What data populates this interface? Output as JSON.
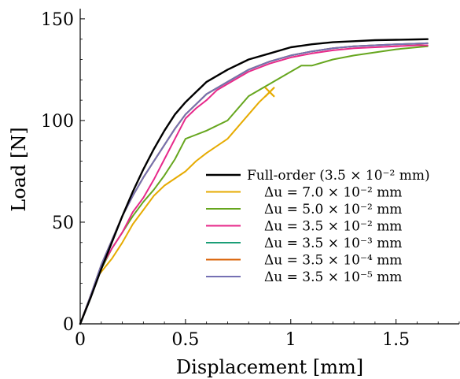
{
  "chart_data": {
    "type": "line",
    "xlabel": "Displacement [mm]",
    "ylabel": "Load [N]",
    "xlim": [
      0,
      1.8
    ],
    "ylim": [
      0,
      155
    ],
    "xticks": [
      0,
      0.5,
      1,
      1.5
    ],
    "xtick_labels": [
      "0",
      "0.5",
      "1",
      "1.5"
    ],
    "yticks": [
      0,
      50,
      100,
      150
    ],
    "ytick_labels": [
      "0",
      "50",
      "100",
      "150"
    ],
    "grid": false,
    "legend_position": "lower-right",
    "series": [
      {
        "name": "Full-order (3.5 × 10⁻² mm)",
        "color": "#000000",
        "x": [
          0,
          0.05,
          0.1,
          0.15,
          0.2,
          0.25,
          0.3,
          0.35,
          0.4,
          0.45,
          0.5,
          0.55,
          0.6,
          0.7,
          0.8,
          0.9,
          1.0,
          1.1,
          1.2,
          1.3,
          1.4,
          1.5,
          1.6,
          1.65
        ],
        "y": [
          0,
          13,
          27,
          40,
          53,
          65,
          76,
          86,
          95,
          103,
          109,
          114,
          119,
          125,
          130,
          133,
          136,
          137.5,
          138.5,
          139,
          139.5,
          139.7,
          139.9,
          140
        ]
      },
      {
        "name": "Δu = 7.0 × 10⁻² mm",
        "color": "#e6ab02",
        "x": [
          0,
          0.05,
          0.08,
          0.15,
          0.2,
          0.25,
          0.3,
          0.35,
          0.4,
          0.5,
          0.55,
          0.6,
          0.7,
          0.75,
          0.85,
          0.9
        ],
        "y": [
          0,
          13,
          23,
          32,
          40,
          49,
          56,
          63,
          68,
          75,
          80,
          84,
          91,
          97,
          109,
          114
        ],
        "end_marker": "x"
      },
      {
        "name": "Δu = 5.0 × 10⁻² mm",
        "color": "#66a61e",
        "x": [
          0,
          0.05,
          0.1,
          0.15,
          0.2,
          0.25,
          0.3,
          0.35,
          0.4,
          0.45,
          0.5,
          0.55,
          0.6,
          0.7,
          0.8,
          0.9,
          1.0,
          1.05,
          1.1,
          1.2,
          1.3,
          1.4,
          1.5,
          1.6,
          1.65
        ],
        "y": [
          0,
          14,
          27,
          37,
          45,
          53,
          60,
          66,
          73,
          81,
          91,
          93,
          95,
          100,
          112,
          118,
          124,
          127,
          127,
          130,
          132,
          133.5,
          135,
          136,
          136.5
        ]
      },
      {
        "name": "Δu = 3.5 × 10⁻² mm",
        "color": "#e7298a",
        "x": [
          0,
          0.05,
          0.1,
          0.15,
          0.2,
          0.25,
          0.3,
          0.35,
          0.4,
          0.45,
          0.5,
          0.55,
          0.6,
          0.65,
          0.7,
          0.8,
          0.9,
          1.0,
          1.1,
          1.2,
          1.3,
          1.4,
          1.5,
          1.6,
          1.65
        ],
        "y": [
          0,
          14,
          28,
          37,
          45,
          55,
          62,
          71,
          81,
          91,
          101,
          106,
          110,
          115,
          118,
          124,
          128,
          131,
          133,
          134.5,
          135.5,
          136,
          136.5,
          137,
          137
        ]
      },
      {
        "name": "Δu = 3.5 × 10⁻³ mm",
        "color": "#1b9e77",
        "x": [
          0,
          0.05,
          0.1,
          0.15,
          0.2,
          0.25,
          0.3,
          0.35,
          0.4,
          0.45,
          0.5,
          0.55,
          0.6,
          0.65,
          0.7,
          0.8,
          0.9,
          1.0,
          1.1,
          1.2,
          1.3,
          1.4,
          1.5,
          1.6,
          1.65
        ],
        "y": [
          0,
          14,
          29,
          41,
          53,
          63,
          72,
          80,
          88,
          96,
          103,
          108,
          113,
          116,
          119,
          125,
          129,
          132,
          134,
          135.5,
          136.5,
          137,
          137.5,
          137.8,
          138
        ]
      },
      {
        "name": "Δu = 3.5 × 10⁻⁴ mm",
        "color": "#d95f02",
        "x": [
          0,
          0.05,
          0.1,
          0.15,
          0.2,
          0.25,
          0.3,
          0.35,
          0.4,
          0.45,
          0.5,
          0.55,
          0.6,
          0.65,
          0.7,
          0.8,
          0.9,
          1.0,
          1.1,
          1.2,
          1.3,
          1.4,
          1.5,
          1.6,
          1.65
        ],
        "y": [
          0,
          14,
          29,
          41,
          53,
          63,
          72,
          80,
          88,
          96,
          103,
          108,
          113,
          116,
          119,
          125,
          129,
          132,
          134,
          135.5,
          136.5,
          137,
          137.5,
          137.8,
          138
        ]
      },
      {
        "name": "Δu = 3.5 × 10⁻⁵ mm",
        "color": "#7570b3",
        "x": [
          0,
          0.05,
          0.1,
          0.15,
          0.2,
          0.25,
          0.3,
          0.35,
          0.4,
          0.45,
          0.5,
          0.55,
          0.6,
          0.65,
          0.7,
          0.8,
          0.9,
          1.0,
          1.1,
          1.2,
          1.3,
          1.4,
          1.5,
          1.6,
          1.65
        ],
        "y": [
          0,
          14,
          29,
          41,
          53,
          63,
          72,
          80,
          88,
          96,
          103,
          108,
          113,
          116,
          119,
          125,
          129,
          132,
          134,
          135.5,
          136.5,
          137,
          137.5,
          137.8,
          138
        ]
      }
    ]
  }
}
